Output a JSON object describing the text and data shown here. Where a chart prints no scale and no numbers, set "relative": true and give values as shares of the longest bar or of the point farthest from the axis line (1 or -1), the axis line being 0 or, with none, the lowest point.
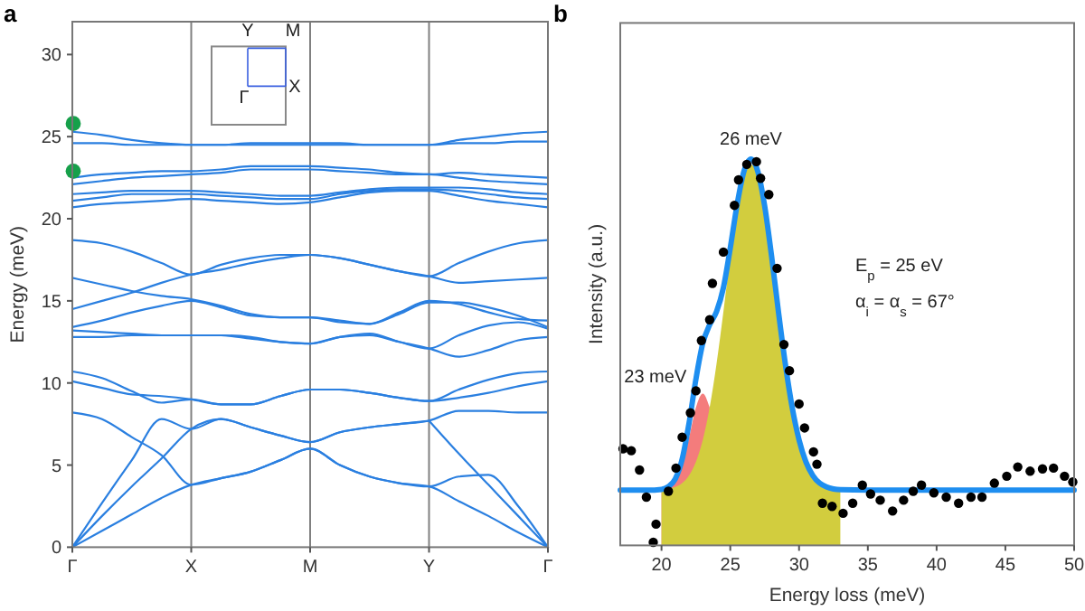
{
  "chart_data": [
    {
      "type": "line",
      "title": "a",
      "ylabel": "Energy (meV)",
      "ylim": [
        0,
        32
      ],
      "categories": [
        "Γ",
        null,
        null,
        null,
        "X",
        null,
        null,
        null,
        "M",
        null,
        null,
        null,
        "Y",
        null,
        null,
        null,
        "Γ"
      ],
      "yticks": [
        0,
        5,
        10,
        15,
        20,
        25,
        30
      ],
      "ref_lines": [
        {
          "axis": "x",
          "value": "X",
          "color": "#808080"
        },
        {
          "axis": "x",
          "value": "M",
          "color": "#808080"
        },
        {
          "axis": "x",
          "value": "Y",
          "color": "#808080"
        }
      ],
      "annotations": [
        "Y",
        "M",
        "Γ",
        "X"
      ],
      "series": [
        {
          "color": "#2a7fe0",
          "values": [
            0,
            1.0,
            2.0,
            3.0,
            3.8,
            4.2,
            4.6,
            5.3,
            6.0,
            5.0,
            4.3,
            3.9,
            3.7,
            2.8,
            1.9,
            0.9,
            0
          ]
        },
        {
          "color": "#2a7fe0",
          "values": [
            0,
            1.9,
            3.7,
            5.4,
            7.2,
            7.8,
            7.3,
            6.8,
            6.4,
            7.0,
            7.3,
            7.5,
            7.7,
            null,
            null,
            null,
            null
          ]
        },
        {
          "color": "#2a7fe0",
          "values": [
            null,
            null,
            null,
            null,
            null,
            null,
            null,
            null,
            null,
            null,
            null,
            null,
            7.7,
            5.7,
            3.8,
            1.9,
            0
          ]
        },
        {
          "color": "#2a7fe0",
          "values": [
            0,
            2.7,
            5.3,
            7.8,
            7.2,
            7.8,
            7.3,
            6.8,
            6.4,
            7.0,
            7.3,
            7.5,
            7.7,
            8.3,
            8.3,
            8.2,
            8.2
          ]
        },
        {
          "color": "#2a7fe0",
          "values": [
            8.2,
            7.8,
            6.7,
            5.6,
            3.8,
            4.2,
            4.6,
            5.3,
            6.0,
            5.0,
            4.3,
            3.9,
            3.7,
            4.3,
            4.4,
            2.5,
            0
          ]
        },
        {
          "color": "#2a7fe0",
          "values": [
            10.1,
            9.7,
            9.3,
            9.2,
            9.0,
            8.7,
            8.7,
            9.2,
            9.6,
            9.6,
            9.4,
            9.1,
            8.9,
            9.1,
            9.4,
            9.8,
            10.1
          ]
        },
        {
          "color": "#2a7fe0",
          "values": [
            10.7,
            10.3,
            9.5,
            8.8,
            9.0,
            8.7,
            8.7,
            9.2,
            9.6,
            9.6,
            9.4,
            9.1,
            8.9,
            9.6,
            10.2,
            10.6,
            10.7
          ]
        },
        {
          "color": "#2a7fe0",
          "values": [
            12.8,
            12.8,
            12.9,
            12.9,
            12.9,
            12.9,
            12.7,
            12.5,
            12.4,
            12.8,
            12.9,
            12.5,
            12.1,
            11.6,
            12.0,
            12.6,
            12.8
          ]
        },
        {
          "color": "#2a7fe0",
          "values": [
            13.2,
            13.1,
            13.0,
            12.9,
            12.9,
            12.9,
            12.8,
            12.5,
            12.4,
            12.8,
            13.0,
            12.5,
            12.1,
            12.9,
            13.5,
            13.7,
            13.3
          ]
        },
        {
          "color": "#2a7fe0",
          "values": [
            13.4,
            13.8,
            14.3,
            14.7,
            15.0,
            14.6,
            14.1,
            14.0,
            14.0,
            13.7,
            13.6,
            14.3,
            15.0,
            14.8,
            14.3,
            13.9,
            13.8
          ]
        },
        {
          "color": "#2a7fe0",
          "values": [
            16.4,
            16.0,
            15.6,
            15.3,
            15.1,
            14.7,
            14.2,
            14.0,
            14.0,
            13.8,
            13.6,
            14.2,
            14.9,
            14.9,
            14.6,
            14.1,
            13.4
          ]
        },
        {
          "color": "#2a7fe0",
          "values": [
            18.7,
            18.5,
            18.0,
            17.3,
            16.6,
            17.2,
            17.6,
            17.8,
            17.8,
            17.6,
            17.2,
            16.8,
            16.5,
            17.3,
            18.0,
            18.5,
            18.7
          ]
        },
        {
          "color": "#2a7fe0",
          "values": [
            14.5,
            15.0,
            15.5,
            16.1,
            16.6,
            16.9,
            17.3,
            17.6,
            17.8,
            17.6,
            17.2,
            16.8,
            16.5,
            16.1,
            16.2,
            16.3,
            16.4
          ]
        },
        {
          "color": "#2a7fe0",
          "values": [
            20.7,
            20.9,
            21.0,
            21.1,
            21.2,
            21.1,
            21.0,
            20.9,
            21.0,
            21.3,
            21.6,
            21.7,
            21.7,
            21.4,
            21.1,
            20.9,
            20.7
          ]
        },
        {
          "color": "#2a7fe0",
          "values": [
            21.1,
            21.3,
            21.5,
            21.5,
            21.5,
            21.4,
            21.3,
            21.2,
            21.2,
            21.5,
            21.7,
            21.8,
            21.8,
            21.7,
            21.5,
            21.3,
            21.2
          ]
        },
        {
          "color": "#2a7fe0",
          "values": [
            21.5,
            21.6,
            21.7,
            21.7,
            21.7,
            21.6,
            21.5,
            21.4,
            21.4,
            21.6,
            21.8,
            21.9,
            21.9,
            21.9,
            21.8,
            21.6,
            21.5
          ]
        },
        {
          "color": "#2a7fe0",
          "values": [
            22.1,
            22.3,
            22.5,
            22.6,
            22.7,
            22.8,
            23.0,
            23.0,
            23.0,
            22.9,
            22.8,
            22.7,
            22.7,
            22.5,
            22.3,
            22.2,
            22.1
          ]
        },
        {
          "color": "#2a7fe0",
          "values": [
            22.5,
            22.7,
            22.8,
            22.9,
            22.9,
            23.0,
            23.2,
            23.2,
            23.2,
            23.1,
            23.0,
            22.8,
            22.7,
            22.8,
            22.7,
            22.6,
            22.5
          ]
        },
        {
          "color": "#2a7fe0",
          "values": [
            24.6,
            24.6,
            24.5,
            24.5,
            24.5,
            24.5,
            24.5,
            24.5,
            24.5,
            24.5,
            24.5,
            24.5,
            24.5,
            24.6,
            24.6,
            24.7,
            24.7
          ]
        },
        {
          "color": "#2a7fe0",
          "values": [
            25.3,
            25.1,
            24.8,
            24.6,
            24.5,
            24.5,
            24.6,
            24.6,
            24.6,
            24.6,
            24.5,
            24.5,
            24.5,
            24.8,
            25.0,
            25.2,
            25.3
          ]
        },
        {
          "type": "scatter",
          "marker": "circle",
          "color": "#16a04a",
          "x": [
            "Γ",
            "Γ"
          ],
          "values": [
            25.8,
            22.9
          ]
        }
      ]
    },
    {
      "type": "line",
      "title": "b",
      "xlabel": "Energy loss (meV)",
      "ylabel": "Intensity (a.u.)",
      "relative": true,
      "xlim": [
        17,
        50
      ],
      "xticks": [
        20,
        25,
        30,
        35,
        40,
        45,
        50
      ],
      "annotations": [
        {
          "text": "26 meV",
          "x": 26.5,
          "y": 1.0
        },
        {
          "text": "23 meV",
          "x": 23,
          "y": 0.393
        },
        "E$_{p}$ = 25 eV",
        "α$_{i}$ = α$_{s}$ = 67°"
      ],
      "series": [
        {
          "type": "area",
          "color": "#f47c7c",
          "x": [
            20,
            20.5,
            21,
            21.5,
            22,
            22.5,
            23,
            23.5
          ],
          "values": [
            0.144,
            0.148,
            0.164,
            0.205,
            0.278,
            0.357,
            0.393,
            0.357
          ]
        },
        {
          "type": "area",
          "color": "#d2cd3e",
          "x": [
            20,
            20.5,
            21,
            21.5,
            22,
            22.5,
            23,
            23.5,
            24,
            24.5,
            25,
            25.5,
            26,
            26.5,
            27,
            27.5,
            28,
            28.5,
            29,
            29.5,
            30,
            30.5,
            31,
            31.5,
            32,
            32.5,
            33
          ],
          "values": [
            0.144,
            0.146,
            0.151,
            0.161,
            0.181,
            0.216,
            0.273,
            0.357,
            0.47,
            0.605,
            0.749,
            0.878,
            0.968,
            0.985,
            0.968,
            0.878,
            0.749,
            0.605,
            0.47,
            0.357,
            0.273,
            0.216,
            0.181,
            0.161,
            0.151,
            0.146,
            0.144
          ]
        },
        {
          "color": "#1e8ef0",
          "x": [
            17,
            19,
            20,
            20.5,
            21,
            21.5,
            22,
            22.5,
            23,
            23.5,
            24,
            24.5,
            25,
            25.5,
            26,
            26.5,
            27,
            27.5,
            28,
            28.5,
            29,
            29.5,
            30,
            30.5,
            31,
            31.5,
            32,
            32.5,
            33,
            35,
            50
          ],
          "values": [
            0.143,
            0.143,
            0.145,
            0.152,
            0.172,
            0.223,
            0.316,
            0.43,
            0.523,
            0.571,
            0.605,
            0.667,
            0.77,
            0.883,
            0.969,
            1.0,
            0.968,
            0.878,
            0.749,
            0.605,
            0.47,
            0.357,
            0.273,
            0.216,
            0.181,
            0.161,
            0.151,
            0.146,
            0.144,
            0.143,
            0.143
          ]
        },
        {
          "type": "scatter",
          "marker": "circle",
          "color": "#000000",
          "x": [
            17.2,
            17.8,
            18.4,
            18.9,
            19.4,
            19.6,
            20.5,
            21.05,
            21.5,
            22.1,
            22.5,
            22.9,
            23.5,
            23.7,
            24.5,
            25.3,
            25.6,
            26.2,
            26.9,
            27.2,
            27.8,
            28.4,
            28.9,
            29.3,
            30.0,
            30.4,
            31.05,
            31.3,
            31.7,
            32.4,
            33.2,
            33.9,
            34.6,
            35.2,
            35.9,
            36.8,
            37.6,
            38.3,
            38.9,
            39.8,
            40.7,
            41.6,
            42.5,
            43.3,
            44.2,
            45.1,
            45.9,
            46.8,
            47.7,
            48.5,
            49.3,
            49.9
          ],
          "values": [
            0.25,
            0.245,
            0.195,
            0.125,
            0.008,
            0.055,
            0.14,
            0.2,
            0.28,
            0.343,
            0.4,
            0.53,
            0.584,
            0.678,
            0.759,
            0.88,
            0.946,
            0.986,
            0.993,
            0.95,
            0.908,
            0.717,
            0.52,
            0.452,
            0.366,
            0.304,
            0.242,
            0.21,
            0.109,
            0.101,
            0.083,
            0.109,
            0.156,
            0.133,
            0.117,
            0.089,
            0.117,
            0.14,
            0.156,
            0.136,
            0.125,
            0.109,
            0.125,
            0.125,
            0.161,
            0.179,
            0.203,
            0.192,
            0.198,
            0.2,
            0.179,
            0.164
          ]
        }
      ]
    }
  ]
}
